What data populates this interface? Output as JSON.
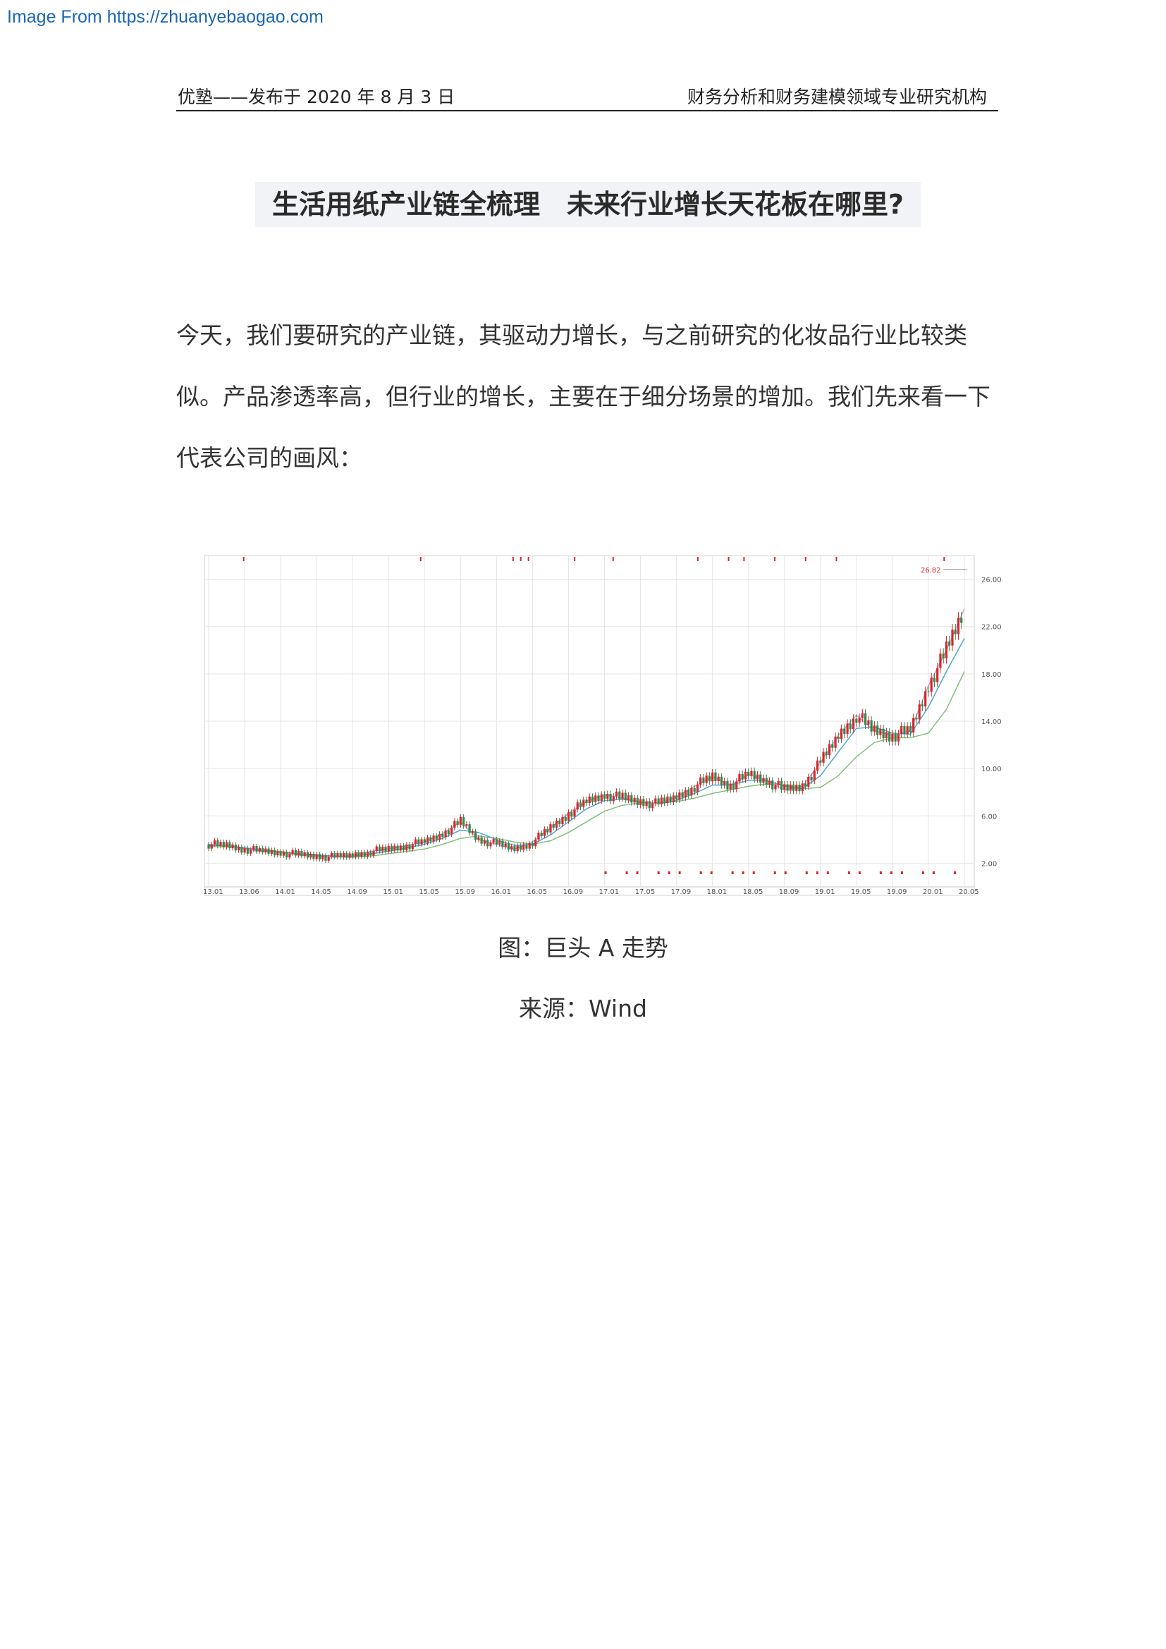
{
  "watermark": "Image From https://zhuanyebaogao.com",
  "header": {
    "left": "优塾——发布于 2020 年 8 月 3 日",
    "right": "财务分析和财务建模领域专业研究机构"
  },
  "title": "生活用纸产业链全梳理　未来行业增长天花板在哪里?",
  "paragraph": "今天，我们要研究的产业链，其驱动力增长，与之前研究的化妆品行业比较类似。产品渗透率高，但行业的增长，主要在于细分场景的增加。我们先来看一下代表公司的画风：",
  "figure_caption": "图：巨头 A 走势",
  "source_caption": "来源：Wind",
  "colors": {
    "up_candle": "#d8262b",
    "down_candle": "#2a8a4c",
    "ma_short": "#d79ad2",
    "ma_mid": "#4aa7d8",
    "ma_long": "#7fc27a",
    "grid": "#e6e6e6"
  },
  "chart_data": {
    "type": "line",
    "title": "",
    "xlabel": "",
    "ylabel": "",
    "x_ticks": [
      "13.01",
      "13.06",
      "14.01",
      "14.05",
      "14.09",
      "15.01",
      "15.05",
      "15.09",
      "16.01",
      "16.05",
      "16.09",
      "17.01",
      "17.05",
      "17.09",
      "18.01",
      "18.05",
      "18.09",
      "19.01",
      "19.05",
      "19.09",
      "20.01",
      "20.05"
    ],
    "y_ticks": [
      "2.00",
      "6.00",
      "10.00",
      "14.00",
      "18.00",
      "22.00",
      "26.00"
    ],
    "ylim": [
      0,
      28
    ],
    "annotation": "26.82",
    "series": [
      {
        "values": [
          3.6,
          3.5,
          3.2,
          3.0,
          2.9,
          2.7,
          2.6,
          2.5,
          2.7,
          3.0,
          3.2,
          3.5,
          3.8,
          4.5,
          5.5,
          4.0,
          3.6,
          3.2,
          3.8,
          5.0,
          6.2,
          7.2,
          7.8,
          7.5,
          7.2,
          7.0,
          7.6,
          8.5,
          9.3,
          8.6,
          9.5,
          9.0,
          8.2,
          8.5,
          10.5,
          12.8,
          14.5,
          13.2,
          12.8,
          13.2,
          17.0,
          20.0,
          23.5
        ]
      },
      {
        "values": [
          3.5,
          3.5,
          3.3,
          3.1,
          2.9,
          2.8,
          2.7,
          2.6,
          2.6,
          2.8,
          3.0,
          3.3,
          3.6,
          4.1,
          4.8,
          4.6,
          4.0,
          3.5,
          3.6,
          4.4,
          5.5,
          6.6,
          7.3,
          7.4,
          7.2,
          7.0,
          7.3,
          7.9,
          8.6,
          8.6,
          9.0,
          9.0,
          8.5,
          8.3,
          9.4,
          11.4,
          13.4,
          13.5,
          13.0,
          12.9,
          15.2,
          18.2,
          21.0
        ]
      },
      {
        "values": [
          3.4,
          3.4,
          3.3,
          3.1,
          3.0,
          2.8,
          2.7,
          2.6,
          2.5,
          2.6,
          2.8,
          3.0,
          3.2,
          3.6,
          4.1,
          4.3,
          4.1,
          3.8,
          3.6,
          3.9,
          4.6,
          5.5,
          6.4,
          6.9,
          7.1,
          7.1,
          7.2,
          7.5,
          7.9,
          8.2,
          8.5,
          8.7,
          8.6,
          8.3,
          8.4,
          9.4,
          11.0,
          12.2,
          12.6,
          12.6,
          13.0,
          15.0,
          18.2
        ]
      }
    ]
  }
}
